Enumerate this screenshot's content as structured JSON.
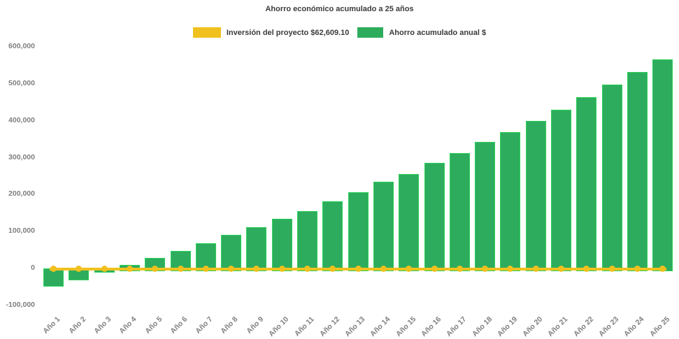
{
  "page": {
    "background_color": "#ffffff",
    "text_color": "#3b3b3b",
    "axis_label_color": "#7f7f7f"
  },
  "chart_data": {
    "type": "bar",
    "title": "Ahorro económico acumulado a 25 años",
    "categories": [
      "Año 1",
      "Año 2",
      "Año 3",
      "Año 4",
      "Año 5",
      "Año 6",
      "Año 7",
      "Año 8",
      "Año 9",
      "Año 10",
      "Año 11",
      "Año 12",
      "Año 13",
      "Año 14",
      "Año 15",
      "Año 16",
      "Año 17",
      "Año 18",
      "Año 19",
      "Año 20",
      "Año 21",
      "Año 22",
      "Año 23",
      "Año 24",
      "Año 25"
    ],
    "series": [
      {
        "name": "Inversión del proyecto $62,609.10",
        "type": "line",
        "color": "#F0C11E",
        "investment_amount": 62609.1,
        "constant_value": 0,
        "markers": "circle"
      },
      {
        "name": "Ahorro acumulado anual $",
        "type": "bar",
        "color": "#2EAC5E",
        "border_color": "#2BD157",
        "values": [
          -48000,
          -31000,
          -10500,
          8500,
          27000,
          46500,
          66500,
          90000,
          111000,
          133000,
          155000,
          180000,
          206000,
          233000,
          255000,
          284000,
          311000,
          341000,
          369000,
          398000,
          429000,
          462000,
          497000,
          531000,
          565000
        ]
      }
    ],
    "xlabel": "",
    "ylabel": "",
    "ylim": [
      -100000,
      600000
    ],
    "ytick_step": 100000,
    "yticks": [
      600000,
      500000,
      400000,
      300000,
      200000,
      100000,
      0,
      -100000
    ],
    "ytick_labels": [
      "600,000",
      "500,000",
      "400,000",
      "300,000",
      "200,000",
      "100,000",
      "0",
      "-100,000"
    ],
    "grid": false,
    "legend_position": "top",
    "x_label_rotation_deg": 45
  }
}
